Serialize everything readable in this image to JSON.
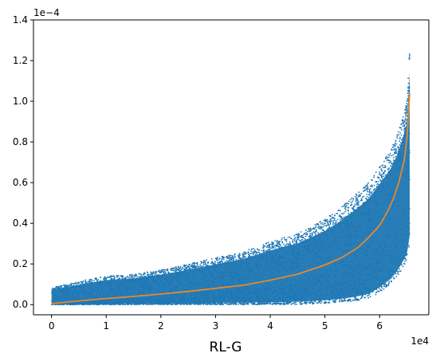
{
  "chart_data": {
    "type": "scatter",
    "xlabel": "RL-G",
    "ylabel": "",
    "title": "",
    "x_offset_text": "1e4",
    "y_offset_text": "1e−4",
    "xlim": [
      -3300,
      69000
    ],
    "ylim": [
      -5e-06,
      0.00014
    ],
    "x_ticks": [
      0,
      10000,
      20000,
      30000,
      40000,
      50000,
      60000
    ],
    "x_tick_labels": [
      "0",
      "1",
      "2",
      "3",
      "4",
      "5",
      "6"
    ],
    "y_ticks": [
      0,
      2e-05,
      4e-05,
      6e-05,
      8e-05,
      0.0001,
      0.00012,
      0.00014
    ],
    "y_tick_labels": [
      "0.0",
      "0.2",
      "0.4",
      "0.6",
      "0.8",
      "1.0",
      "1.2",
      "1.4"
    ],
    "grid": false,
    "colors": {
      "scatter": "#1f77b4",
      "line": "#e8892a"
    },
    "series": [
      {
        "kind": "scatter_band",
        "x": [
          0,
          3000,
          6000,
          10000,
          15000,
          20000,
          25000,
          30000,
          35000,
          40000,
          45000,
          50000,
          53000,
          56000,
          58000,
          60000,
          62000,
          63000,
          64000,
          65000,
          65500
        ],
        "y_low": [
          0,
          0,
          0,
          0,
          0,
          0,
          0,
          0,
          0,
          0,
          0,
          5e-07,
          1e-06,
          2e-06,
          3e-06,
          6e-06,
          1e-05,
          1.3e-05,
          1.7e-05,
          2.2e-05,
          3e-05
        ],
        "y_high": [
          9e-06,
          1e-05,
          1.2e-05,
          1.4e-05,
          1.5e-05,
          1.7e-05,
          2e-05,
          2.3e-05,
          2.6e-05,
          3.1e-05,
          3.5e-05,
          4.2e-05,
          4.8e-05,
          5.5e-05,
          6e-05,
          6.8e-05,
          7.6e-05,
          8.2e-05,
          9e-05,
          0.0001,
          0.000128
        ]
      },
      {
        "kind": "line",
        "x": [
          0,
          5000,
          10000,
          15000,
          20000,
          25000,
          30000,
          35000,
          40000,
          45000,
          50000,
          53000,
          56000,
          58000,
          60000,
          61500,
          62500,
          63500,
          64500,
          65000,
          65500
        ],
        "y": [
          5e-07,
          1.8e-06,
          3e-06,
          4e-06,
          5.2e-06,
          6.5e-06,
          8e-06,
          9.5e-06,
          1.2e-05,
          1.5e-05,
          1.95e-05,
          2.3e-05,
          2.8e-05,
          3.3e-05,
          3.9e-05,
          4.6e-05,
          5.2e-05,
          6e-05,
          7.1e-05,
          8.2e-05,
          0.000104
        ]
      }
    ]
  }
}
